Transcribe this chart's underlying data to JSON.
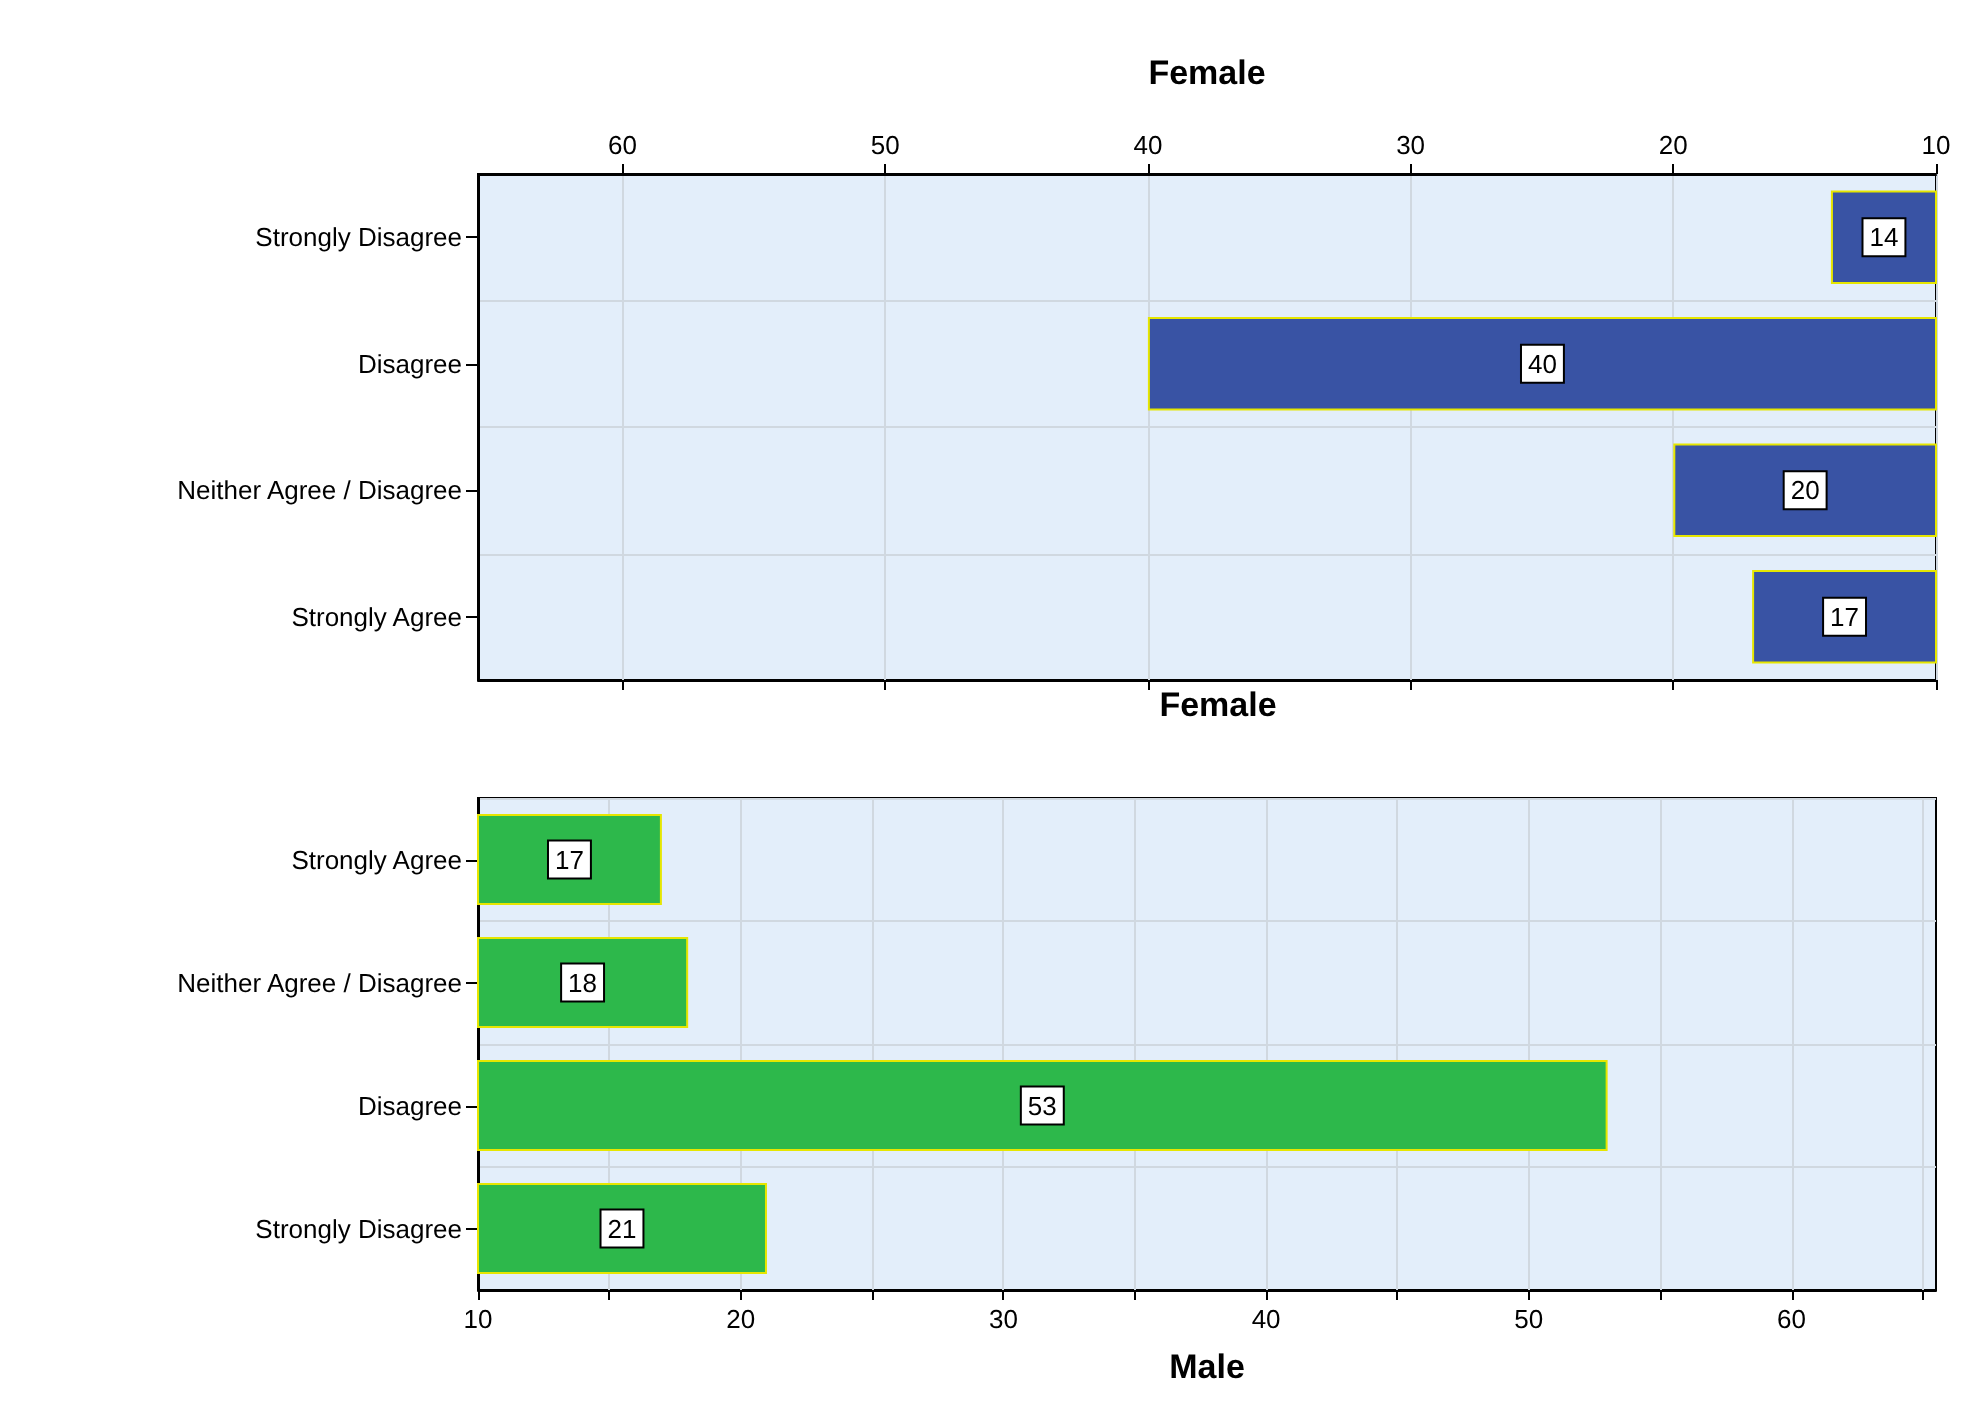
{
  "chart_data": [
    {
      "type": "bar",
      "orientation": "horizontal",
      "xlabel": "Female",
      "annotations": [
        "Female"
      ],
      "categories": [
        "Strongly Disagree",
        "Disagree",
        "Neither Agree / Disagree",
        "Strongly Agree"
      ],
      "series": [
        {
          "color": "#3953a4",
          "values": [
            14,
            40,
            20,
            17
          ]
        }
      ],
      "xlim": [
        65.5,
        10
      ],
      "xticks": [
        60,
        50,
        40,
        30,
        20,
        10
      ],
      "grid": true,
      "data_labels": true
    },
    {
      "type": "bar",
      "orientation": "horizontal",
      "xlabel": "Male",
      "categories": [
        "Strongly Agree",
        "Neither Agree / Disagree",
        "Disagree",
        "Strongly Disagree"
      ],
      "series": [
        {
          "color": "#2db84b",
          "values": [
            17,
            18,
            53,
            21
          ]
        }
      ],
      "xlim": [
        10,
        65.5
      ],
      "xticks": [
        10,
        {
          "value": 15,
          "label": null
        },
        20,
        {
          "value": 25,
          "label": null
        },
        30,
        {
          "value": 35,
          "label": null
        },
        40,
        {
          "value": 45,
          "label": null
        },
        50,
        {
          "value": 55,
          "label": null
        },
        60,
        {
          "value": 65,
          "label": null
        }
      ],
      "grid": true,
      "data_labels": true
    }
  ]
}
